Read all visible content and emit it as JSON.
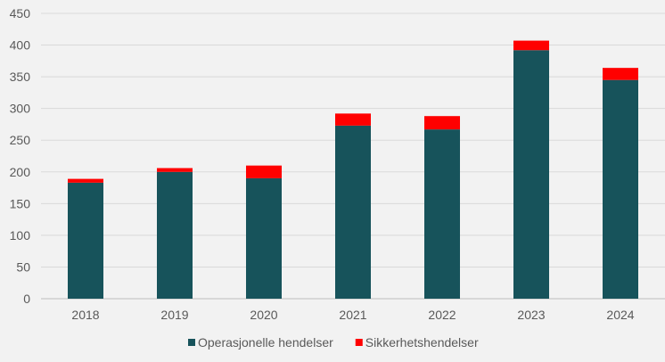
{
  "chart_data": {
    "type": "bar",
    "stacked": true,
    "categories": [
      "2018",
      "2019",
      "2020",
      "2021",
      "2022",
      "2023",
      "2024"
    ],
    "series": [
      {
        "name": "Operasjonelle hendelser",
        "color": "#17535b",
        "values": [
          183,
          200,
          190,
          273,
          267,
          392,
          345
        ]
      },
      {
        "name": "Sikkerhetshendelser",
        "color": "#ff0000",
        "values": [
          6,
          6,
          20,
          19,
          21,
          15,
          19
        ]
      }
    ],
    "ylim": [
      0,
      450
    ],
    "yticks": [
      0,
      50,
      100,
      150,
      200,
      250,
      300,
      350,
      400,
      450
    ],
    "grid": true,
    "legend": "bottom"
  }
}
